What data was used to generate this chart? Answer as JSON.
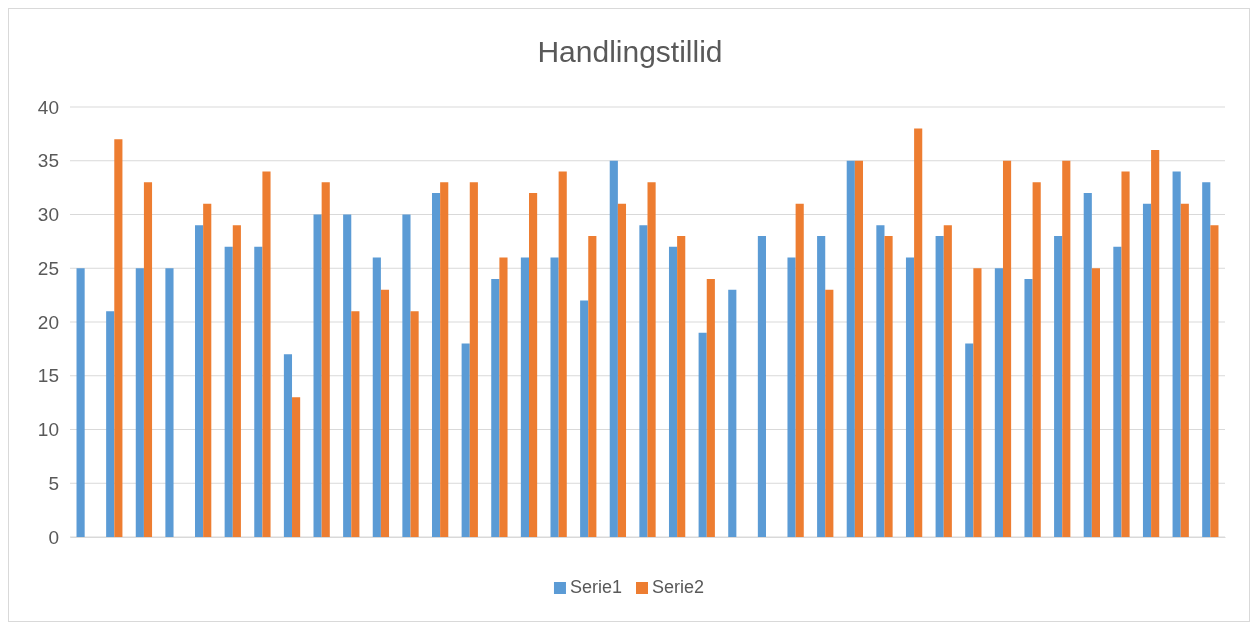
{
  "chart_data": {
    "type": "bar",
    "title": "Handlingstillid",
    "categories": [
      null,
      null,
      null,
      null,
      null,
      null,
      null,
      null,
      null,
      null,
      null,
      null,
      null,
      null,
      null,
      null,
      null,
      null,
      null,
      null,
      null,
      null,
      null,
      null,
      null,
      null,
      null,
      null,
      null,
      null,
      null,
      null,
      null,
      null,
      null,
      null,
      null,
      null,
      null
    ],
    "series": [
      {
        "name": "Serie1",
        "color": "#5b9bd5",
        "values": [
          25,
          21,
          25,
          25,
          29,
          27,
          27,
          17,
          30,
          30,
          26,
          30,
          32,
          18,
          24,
          26,
          26,
          22,
          35,
          29,
          27,
          19,
          23,
          28,
          26,
          28,
          35,
          29,
          26,
          28,
          18,
          25,
          24,
          28,
          32,
          27,
          31,
          34,
          33
        ]
      },
      {
        "name": "Serie2",
        "color": "#ed7d31",
        "values": [
          null,
          37,
          33,
          null,
          31,
          29,
          34,
          13,
          33,
          21,
          23,
          21,
          33,
          33,
          26,
          32,
          34,
          28,
          31,
          33,
          28,
          24,
          null,
          null,
          31,
          23,
          35,
          28,
          38,
          29,
          25,
          35,
          33,
          35,
          25,
          34,
          36,
          31,
          29
        ]
      }
    ],
    "ylim": [
      0,
      40
    ],
    "yticks": [
      0,
      5,
      10,
      15,
      20,
      25,
      30,
      35,
      40
    ],
    "grid": "y",
    "legend": "bottom"
  }
}
